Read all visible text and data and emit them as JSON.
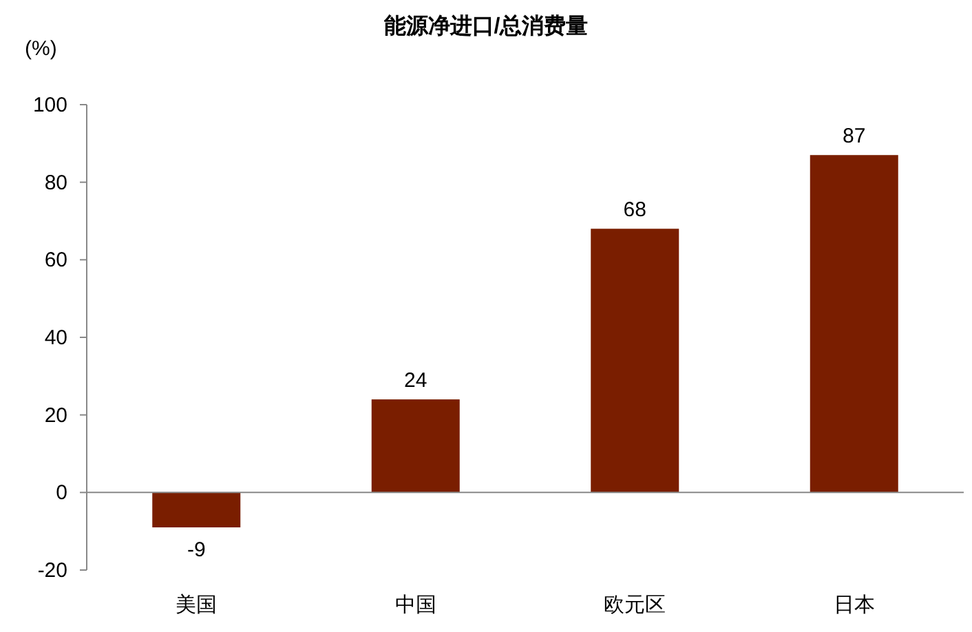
{
  "chart_data": {
    "type": "bar",
    "title": "能源净进口/总消费量",
    "ylabel": "(%)",
    "categories": [
      "美国",
      "中国",
      "欧元区",
      "日本"
    ],
    "values": [
      -9,
      24,
      68,
      87
    ],
    "color": "#7a1e00",
    "ylim": [
      -20,
      100
    ],
    "yticks": [
      -20,
      0,
      20,
      40,
      60,
      80,
      100
    ],
    "data_labels": true
  }
}
